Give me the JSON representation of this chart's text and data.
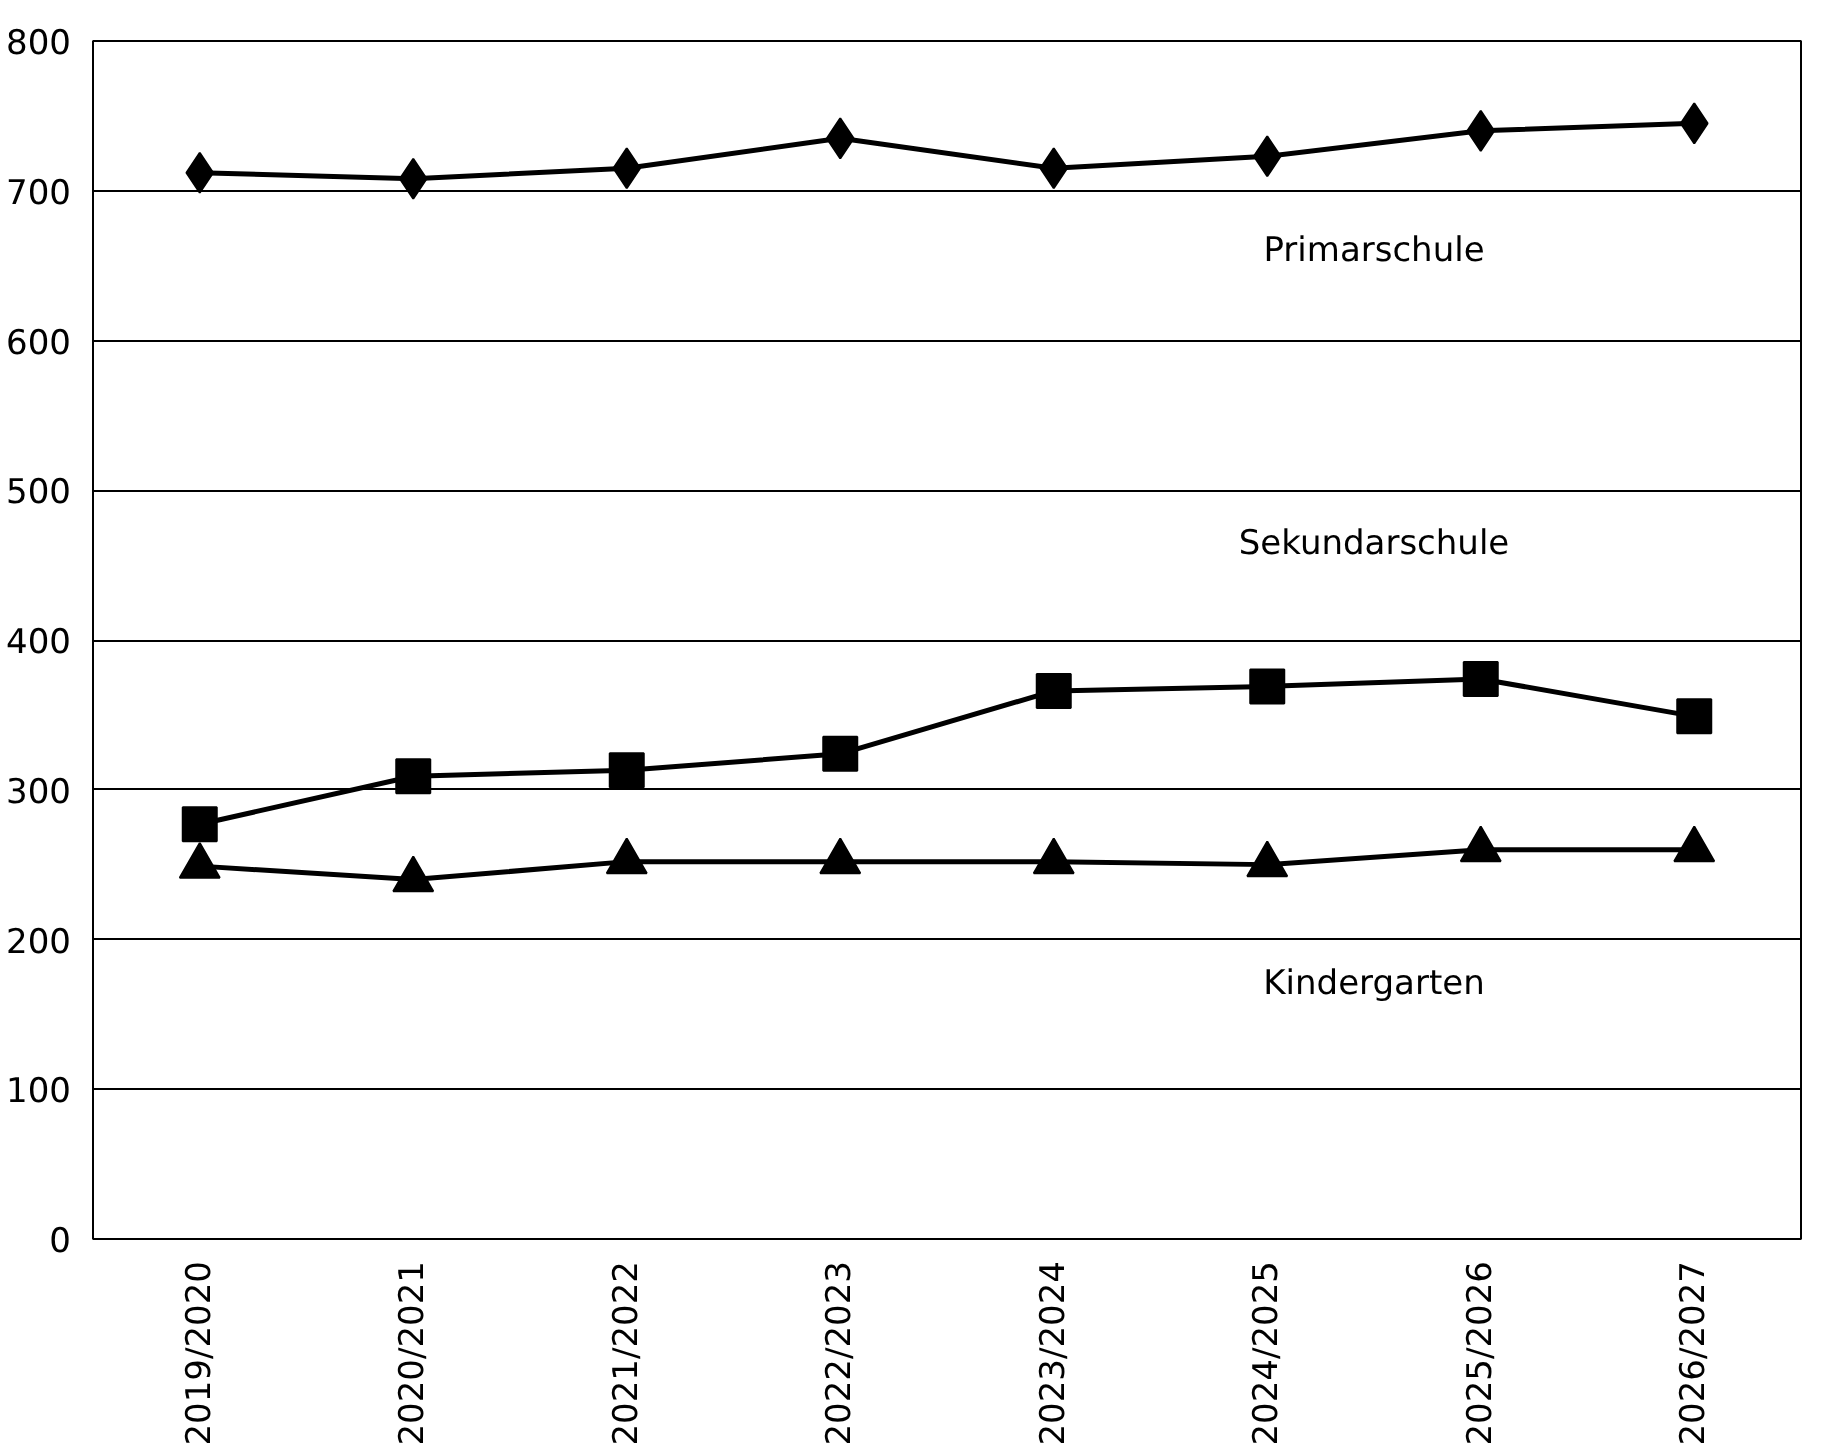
{
  "chart_data": {
    "type": "line",
    "categories": [
      "2019/2020",
      "2020/2021",
      "2021/2022",
      "2022/2023",
      "2023/2024",
      "2024/2025",
      "2025/2026",
      "2026/2027"
    ],
    "series": [
      {
        "name": "Primarschule",
        "color": "#000000",
        "marker": "diamond",
        "values": [
          712,
          708,
          715,
          735,
          715,
          723,
          740,
          745
        ]
      },
      {
        "name": "Sekundarschule",
        "color": "#000000",
        "marker": "square",
        "values": [
          277,
          309,
          313,
          324,
          366,
          369,
          374,
          349
        ]
      },
      {
        "name": "Kindergarten",
        "color": "#000000",
        "marker": "triangle",
        "values": [
          249,
          240,
          252,
          252,
          252,
          250,
          260,
          260
        ]
      }
    ],
    "ylim": [
      0,
      800
    ],
    "yticks": [
      0,
      100,
      200,
      300,
      400,
      500,
      600,
      700,
      800
    ],
    "grid": "y",
    "legend": false,
    "line_style": "solid"
  }
}
